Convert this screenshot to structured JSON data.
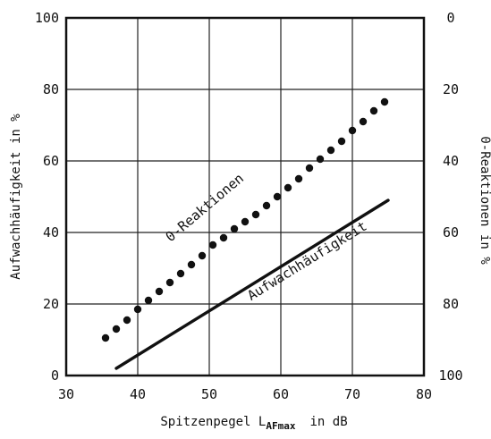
{
  "chart_data": {
    "type": "line",
    "xlabel": "Spitzenpegel L",
    "xlabel_sub": "AFmax",
    "xlabel_unit": "in dB",
    "ylabel": "Aufwachhäufigkeit in %",
    "ylabel_right": "0-Reaktionen in %",
    "xlim": [
      30,
      80
    ],
    "ylim": [
      0,
      100
    ],
    "ylim_right": [
      100,
      0
    ],
    "x_ticks": [
      "30",
      "40",
      "50",
      "60",
      "70",
      "80"
    ],
    "y_ticks": [
      "0",
      "20",
      "40",
      "60",
      "80",
      "100"
    ],
    "y_ticks_right": [
      "100",
      "80",
      "60",
      "40",
      "20",
      "0"
    ],
    "grid": true,
    "series": [
      {
        "name": "0-Reaktionen",
        "style": "dotted",
        "x": [
          35.5,
          37,
          38.5,
          40,
          41.5,
          43,
          44.5,
          46,
          47.5,
          49,
          50.5,
          52,
          53.5,
          55,
          56.5,
          58,
          59.5,
          61,
          62.5,
          64,
          65.5,
          67,
          68.5,
          70,
          71.5,
          73,
          74.5
        ],
        "y": [
          10.5,
          13,
          15.5,
          18.5,
          21,
          23.5,
          26,
          28.5,
          31,
          33.5,
          36.5,
          38.5,
          41,
          43,
          45,
          47.5,
          50,
          52.5,
          55,
          58,
          60.5,
          63,
          65.5,
          68.5,
          71,
          74,
          76.5
        ]
      },
      {
        "name": "Aufwachhäufigkeit",
        "style": "solid",
        "x": [
          37,
          75
        ],
        "y": [
          2,
          49
        ]
      }
    ]
  }
}
